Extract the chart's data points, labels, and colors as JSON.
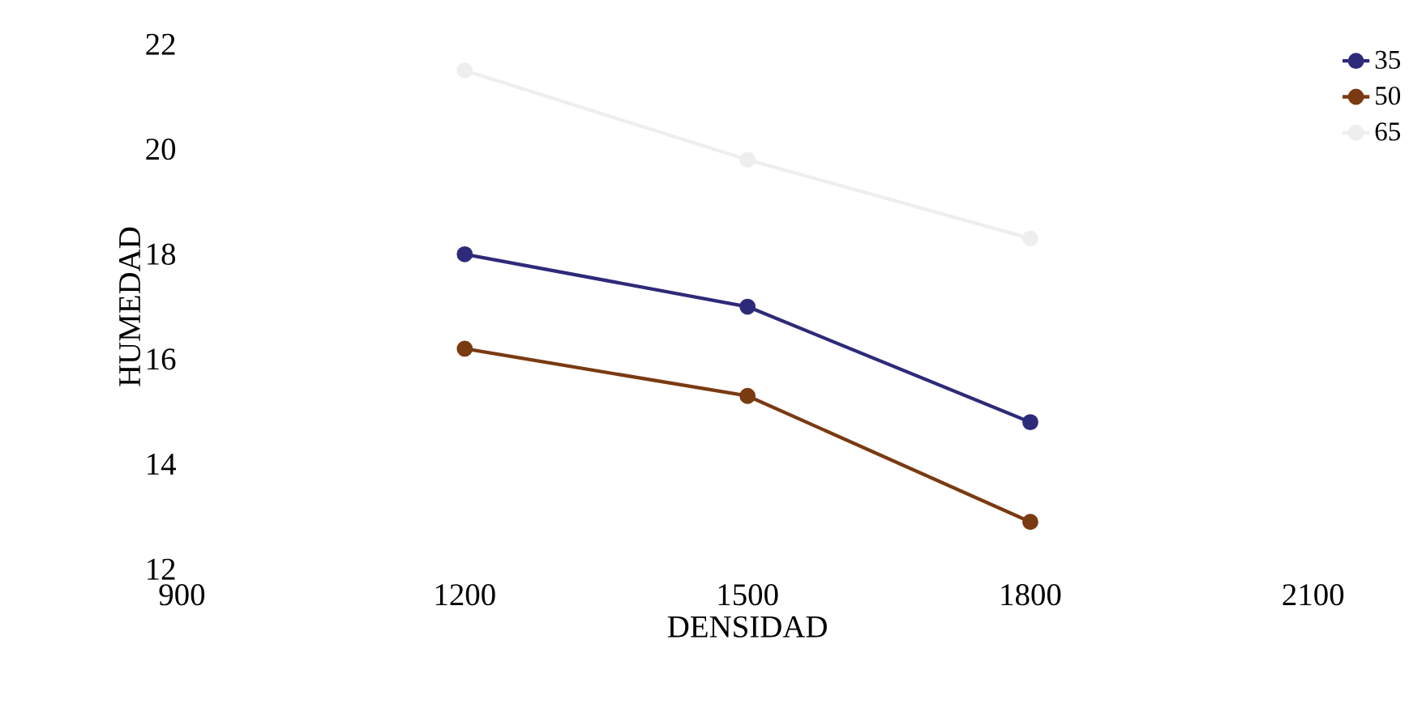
{
  "chart_data": {
    "type": "line",
    "xlabel": "DENSIDAD",
    "ylabel": "HUMEDAD",
    "x": [
      1200,
      1500,
      1800
    ],
    "series": [
      {
        "name": "35",
        "color": "#2e2a7a",
        "values": [
          18.0,
          17.0,
          14.8
        ]
      },
      {
        "name": "50",
        "color": "#7a3a12",
        "values": [
          16.2,
          15.3,
          12.9
        ]
      },
      {
        "name": "65",
        "color": "#eeeeee",
        "values": [
          21.5,
          19.8,
          18.3
        ]
      }
    ],
    "xlim": [
      900,
      2100
    ],
    "xticks": [
      900,
      1200,
      1500,
      1800,
      2100
    ],
    "ylim": [
      12,
      22
    ],
    "yticks": [
      12,
      14,
      16,
      18,
      20,
      22
    ],
    "grid": false,
    "legend": "top right",
    "marker": "circle",
    "line_style": "solid"
  }
}
